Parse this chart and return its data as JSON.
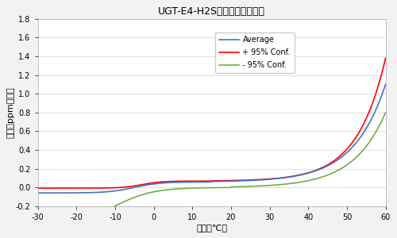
{
  "title": "UGT-E4-H2S传感器稳定性特性",
  "xlabel": "温度（℃）",
  "ylabel": "输出（ppm当量）",
  "xlim": [
    -30,
    60
  ],
  "ylim": [
    -0.2,
    1.8
  ],
  "xticks": [
    -30,
    -20,
    -10,
    0,
    10,
    20,
    30,
    40,
    50,
    60
  ],
  "yticks": [
    -0.2,
    0.0,
    0.2,
    0.4,
    0.6,
    0.8,
    1.0,
    1.2,
    1.4,
    1.6,
    1.8
  ],
  "avg_color": "#4472C4",
  "upper_color": "#FF0000",
  "lower_color": "#70AD47",
  "legend_labels": [
    "Average",
    "+ 95% Conf.",
    "- 95% Conf."
  ],
  "background_color": "#F2F2F2",
  "plot_bg_color": "#FFFFFF"
}
